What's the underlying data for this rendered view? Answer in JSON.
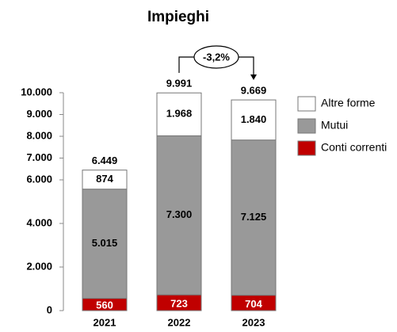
{
  "chart_data": {
    "type": "stacked-bar",
    "title": "Impieghi",
    "categories": [
      "2021",
      "2022",
      "2023"
    ],
    "series": [
      {
        "name": "Conti correnti",
        "color": "#c00000",
        "values": [
          560,
          723,
          704
        ],
        "value_labels": [
          "560",
          "723",
          "704"
        ]
      },
      {
        "name": "Mutui",
        "color": "#999999",
        "values": [
          5015,
          7300,
          7125
        ],
        "value_labels": [
          "5.015",
          "7.300",
          "7.125"
        ]
      },
      {
        "name": "Altre forme",
        "color": "#ffffff",
        "values": [
          874,
          1968,
          1840
        ],
        "value_labels": [
          "874",
          "1.968",
          "1.840"
        ]
      }
    ],
    "totals": {
      "values": [
        6449,
        9991,
        9669
      ],
      "value_labels": [
        "6.449",
        "9.991",
        "9.669"
      ]
    },
    "annotation": "-3,2%",
    "ylim": [
      0,
      10000
    ],
    "yticks": [
      0,
      {
        "value": 2000,
        "label": "2.000"
      },
      {
        "value": 4000,
        "label": "4.000"
      },
      {
        "value": 6000,
        "label": "6.000"
      },
      {
        "value": 7000,
        "label": "7.000"
      },
      {
        "value": 8000,
        "label": "8.000"
      },
      {
        "value": 9000,
        "label": "9.000"
      },
      {
        "value": 10000,
        "label": "10.000"
      }
    ],
    "legend": "right"
  }
}
